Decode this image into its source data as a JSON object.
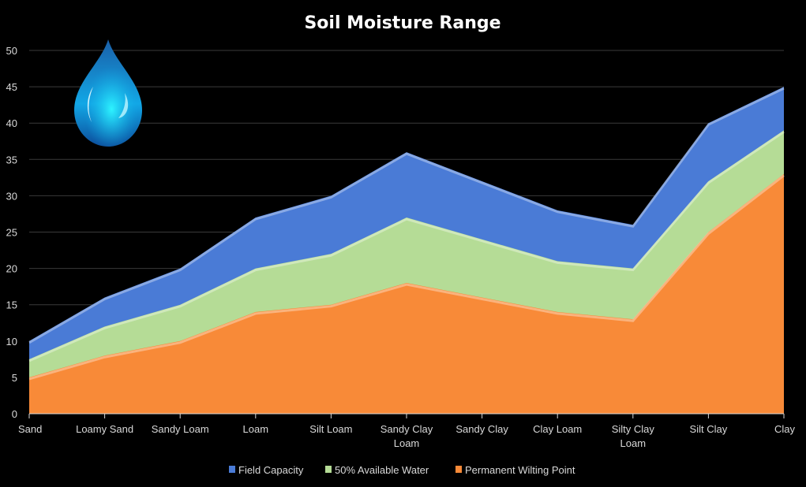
{
  "chart_data": {
    "type": "area",
    "title": "Soil Moisture Range",
    "categories": [
      "Sand",
      "Loamy Sand",
      "Sandy Loam",
      "Loam",
      "Silt Loam",
      "Sandy Clay Loam",
      "Sandy Clay",
      "Clay Loam",
      "Silty Clay Loam",
      "Silt Clay",
      "Clay"
    ],
    "series": [
      {
        "name": "Field Capacity",
        "color": "#4a7bd6",
        "values": [
          10,
          16,
          20,
          27,
          30,
          36,
          32,
          28,
          26,
          40,
          45
        ]
      },
      {
        "name": "50% Available Water",
        "color": "#b5dc96",
        "values": [
          7.5,
          12,
          15,
          20,
          22,
          27,
          24,
          21,
          20,
          32,
          39
        ]
      },
      {
        "name": "Permanent Wilting Point",
        "color": "#f88a38",
        "values": [
          5,
          8,
          10,
          14,
          15,
          18,
          16,
          14,
          13,
          25,
          33
        ]
      }
    ],
    "ylim": [
      0,
      50
    ],
    "yticks": [
      0,
      5,
      10,
      15,
      20,
      25,
      30,
      35,
      40,
      45,
      50
    ],
    "grid": true,
    "legend": "bottom",
    "decoration": "water-drop-icon"
  }
}
